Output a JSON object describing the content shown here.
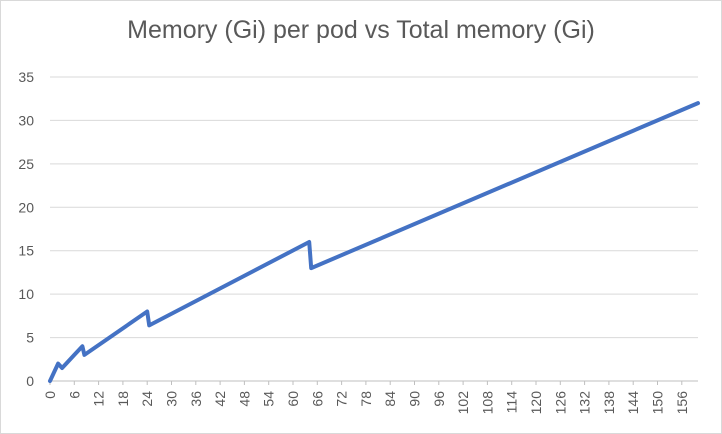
{
  "chart_data": {
    "type": "line",
    "title": "Memory (Gi) per pod vs Total memory (Gi)",
    "xlabel": "",
    "ylabel": "",
    "ylim": [
      0,
      35
    ],
    "yticks": [
      0,
      5,
      10,
      15,
      20,
      25,
      30,
      35
    ],
    "xlim": [
      0,
      160
    ],
    "xticks": [
      0,
      6,
      12,
      18,
      24,
      30,
      36,
      42,
      48,
      54,
      60,
      66,
      72,
      78,
      84,
      90,
      96,
      102,
      108,
      114,
      120,
      126,
      132,
      138,
      144,
      150,
      156
    ],
    "grid": true,
    "legend": "none",
    "series": [
      {
        "color": "#4472c4",
        "points": [
          [
            0,
            0
          ],
          [
            2,
            2
          ],
          [
            3,
            1.5
          ],
          [
            4,
            2
          ],
          [
            6,
            3
          ],
          [
            8,
            4
          ],
          [
            8.5,
            3
          ],
          [
            24,
            8
          ],
          [
            24.5,
            6.4
          ],
          [
            64,
            16
          ],
          [
            64.5,
            13
          ],
          [
            160,
            32
          ]
        ]
      }
    ]
  }
}
